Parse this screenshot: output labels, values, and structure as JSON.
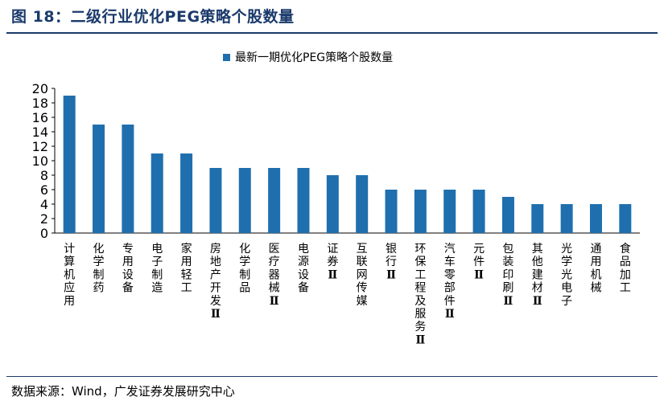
{
  "figure": {
    "title": "图 18：二级行业优化PEG策略个股数量",
    "source": "数据来源：Wind，广发证券发展研究中心"
  },
  "colors": {
    "bar": "#1f6fae",
    "title": "#1a3a6b"
  },
  "chart_data": {
    "type": "bar",
    "title": "",
    "xlabel": "",
    "ylabel": "",
    "ylim": [
      0,
      20
    ],
    "yticks": [
      0,
      2,
      4,
      6,
      8,
      10,
      12,
      14,
      16,
      18,
      20
    ],
    "legend": {
      "position": "top",
      "entries": [
        "最新一期优化PEG策略个股数量"
      ]
    },
    "categories": [
      "计算机应用",
      "化学制药",
      "专用设备",
      "电子制造",
      "家用轻工",
      "房地产开发Ⅱ",
      "化学制品",
      "医疗器械Ⅱ",
      "电源设备",
      "证券Ⅱ",
      "互联网传媒",
      "银行Ⅱ",
      "环保工程及服务Ⅱ",
      "汽车零部件Ⅱ",
      "元件Ⅱ",
      "包装印刷Ⅱ",
      "其他建材Ⅱ",
      "光学光电子",
      "通用机械",
      "食品加工"
    ],
    "series": [
      {
        "name": "最新一期优化PEG策略个股数量",
        "values": [
          19,
          15,
          15,
          11,
          11,
          9,
          9,
          9,
          9,
          8,
          8,
          6,
          6,
          6,
          6,
          5,
          4,
          4,
          4,
          4
        ]
      }
    ]
  }
}
